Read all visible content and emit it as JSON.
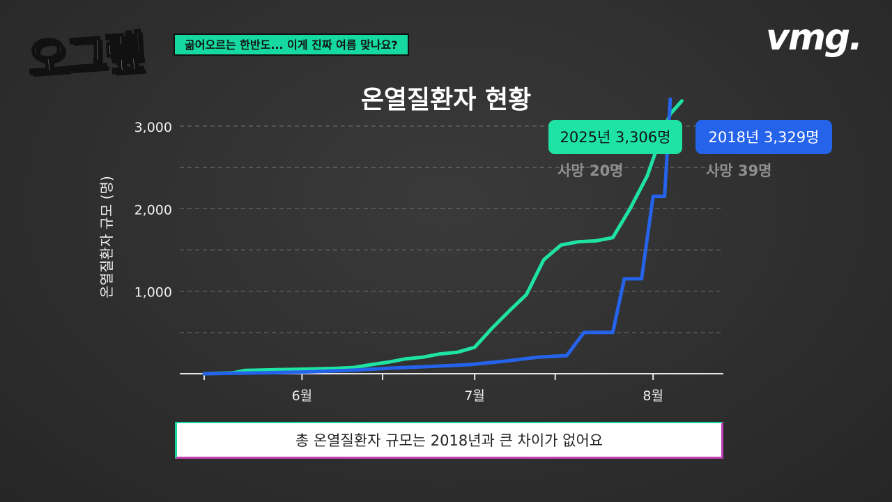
{
  "logo": {
    "text": "오그랲"
  },
  "topic": "곪어오르는 한반도... 이게 진짜 여름 맞나요?",
  "brand": "vmg.",
  "caption": "총 온열질환자 규모는 2018년과 큰 차이가 없어요",
  "colors": {
    "series_2025": "#1fe3a4",
    "series_2018": "#2563eb",
    "grid": "#6a6a6a",
    "axis": "#e6e6e6"
  },
  "chart_data": {
    "type": "line",
    "title": "온열질환자 현황",
    "ylabel": "온열질환자 규모 (명)",
    "xlabel": "",
    "ylim": [
      0,
      3000
    ],
    "yticks": [
      1000,
      2000,
      3000
    ],
    "ytick_labels": [
      "1,000",
      "2,000",
      "3,000"
    ],
    "xticks": [
      "6월",
      "7월",
      "8월"
    ],
    "xtick_dates": [
      "06-01",
      "07-01",
      "08-01"
    ],
    "grid": "dashed horizontal",
    "series": [
      {
        "name": "2025년",
        "label": "2025년 3,306명",
        "sublabel": "사망 20명",
        "color": "#1fe3a4",
        "points": [
          [
            "05-15",
            0
          ],
          [
            "05-20",
            10
          ],
          [
            "05-22",
            40
          ],
          [
            "05-25",
            45
          ],
          [
            "05-28",
            50
          ],
          [
            "06-01",
            55
          ],
          [
            "06-04",
            60
          ],
          [
            "06-07",
            65
          ],
          [
            "06-10",
            75
          ],
          [
            "06-13",
            110
          ],
          [
            "06-16",
            140
          ],
          [
            "06-19",
            180
          ],
          [
            "06-22",
            200
          ],
          [
            "06-25",
            240
          ],
          [
            "06-28",
            260
          ],
          [
            "07-01",
            320
          ],
          [
            "07-04",
            550
          ],
          [
            "07-07",
            760
          ],
          [
            "07-10",
            960
          ],
          [
            "07-13",
            1380
          ],
          [
            "07-16",
            1560
          ],
          [
            "07-19",
            1600
          ],
          [
            "07-22",
            1610
          ],
          [
            "07-25",
            1650
          ],
          [
            "07-28",
            2000
          ],
          [
            "07-31",
            2400
          ],
          [
            "08-02",
            2800
          ],
          [
            "08-04",
            3150
          ],
          [
            "08-06",
            3306
          ]
        ]
      },
      {
        "name": "2018년",
        "label": "2018년 3,329명",
        "sublabel": "사망 39명",
        "color": "#2563eb",
        "points": [
          [
            "05-15",
            0
          ],
          [
            "05-25",
            10
          ],
          [
            "06-01",
            20
          ],
          [
            "06-09",
            40
          ],
          [
            "06-17",
            70
          ],
          [
            "06-24",
            90
          ],
          [
            "06-30",
            110
          ],
          [
            "07-06",
            150
          ],
          [
            "07-12",
            200
          ],
          [
            "07-17",
            220
          ],
          [
            "07-20",
            500
          ],
          [
            "07-25",
            500
          ],
          [
            "07-27",
            1150
          ],
          [
            "07-30",
            1150
          ],
          [
            "08-01",
            2150
          ],
          [
            "08-03",
            2150
          ],
          [
            "08-04",
            3329
          ]
        ]
      }
    ]
  }
}
